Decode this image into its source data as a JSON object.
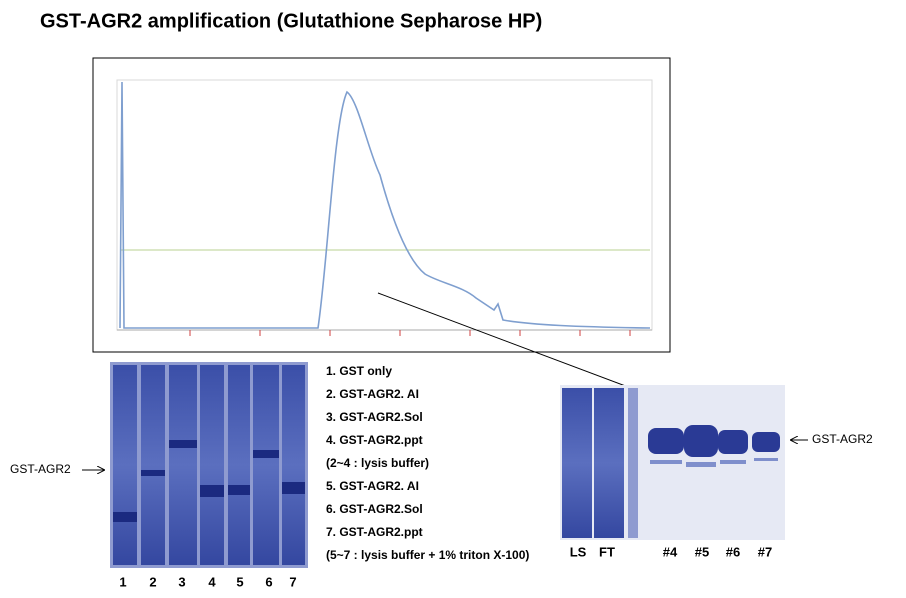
{
  "title": "GST-AGR2 amplification (Glutathione Sepharose HP)",
  "left_gel": {
    "band_label": "GST-AGR2",
    "lanes": [
      "1",
      "2",
      "3",
      "4",
      "5",
      "6",
      "7"
    ]
  },
  "legend": [
    "1. GST only",
    "2. GST-AGR2.  AI",
    "3. GST-AGR2.Sol",
    "4. GST-AGR2.ppt",
    "(2~4 : lysis buffer)",
    "5. GST-AGR2.  AI",
    "6. GST-AGR2.Sol",
    "7. GST-AGR2.ppt",
    "(5~7 : lysis buffer + 1% triton X-100)"
  ],
  "right_gel": {
    "band_label": "GST-AGR2",
    "lanes": [
      "LS",
      "FT",
      "#4",
      "#5",
      "#6",
      "#7"
    ]
  }
}
